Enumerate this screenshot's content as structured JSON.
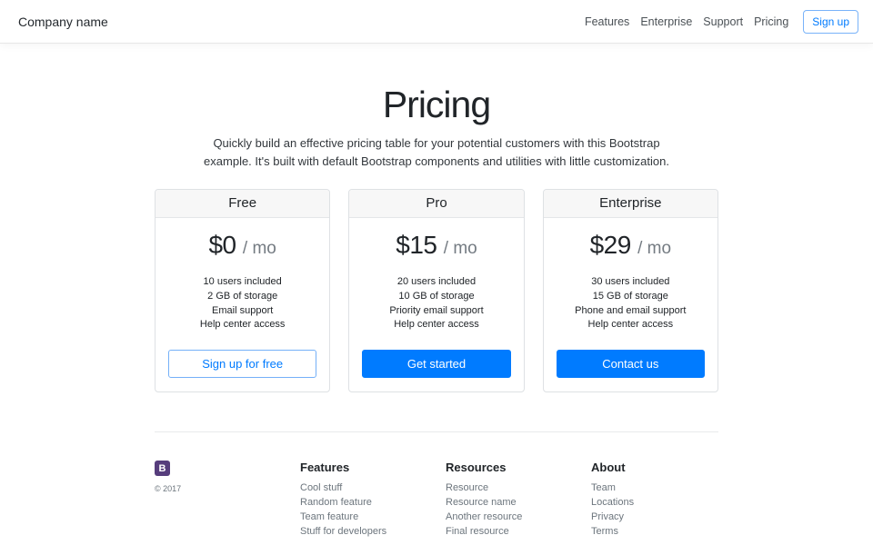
{
  "header": {
    "brand": "Company name",
    "nav": [
      {
        "label": "Features"
      },
      {
        "label": "Enterprise"
      },
      {
        "label": "Support"
      },
      {
        "label": "Pricing"
      }
    ],
    "signup_label": "Sign up"
  },
  "hero": {
    "title": "Pricing",
    "lead": "Quickly build an effective pricing table for your potential customers with this Bootstrap example. It's built with default Bootstrap components and utilities with little customization."
  },
  "plans": [
    {
      "name": "Free",
      "price": "$0",
      "period": "/ mo",
      "features": [
        "10 users included",
        "2 GB of storage",
        "Email support",
        "Help center access"
      ],
      "cta": "Sign up for free"
    },
    {
      "name": "Pro",
      "price": "$15",
      "period": "/ mo",
      "features": [
        "20 users included",
        "10 GB of storage",
        "Priority email support",
        "Help center access"
      ],
      "cta": "Get started"
    },
    {
      "name": "Enterprise",
      "price": "$29",
      "period": "/ mo",
      "features": [
        "30 users included",
        "15 GB of storage",
        "Phone and email support",
        "Help center access"
      ],
      "cta": "Contact us"
    }
  ],
  "footer": {
    "logo_letter": "B",
    "copyright": "© 2017",
    "columns": [
      {
        "title": "Features",
        "links": [
          "Cool stuff",
          "Random feature",
          "Team feature",
          "Stuff for developers"
        ]
      },
      {
        "title": "Resources",
        "links": [
          "Resource",
          "Resource name",
          "Another resource",
          "Final resource"
        ]
      },
      {
        "title": "About",
        "links": [
          "Team",
          "Locations",
          "Privacy",
          "Terms"
        ]
      }
    ]
  },
  "colors": {
    "primary": "#007bff",
    "outline_border": "#74b0f8",
    "logo_bg": "#563d7c",
    "muted_text": "#6c757d",
    "card_header_bg": "#f7f7f7"
  }
}
